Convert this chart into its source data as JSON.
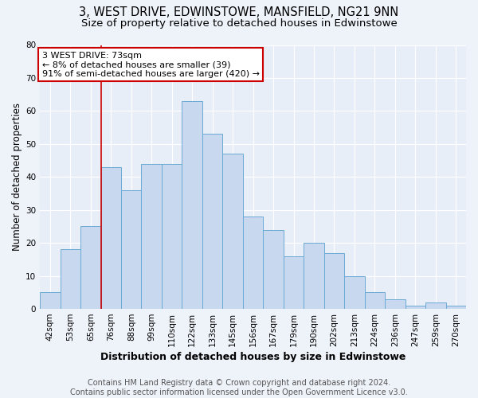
{
  "title_line1": "3, WEST DRIVE, EDWINSTOWE, MANSFIELD, NG21 9NN",
  "title_line2": "Size of property relative to detached houses in Edwinstowe",
  "xlabel": "Distribution of detached houses by size in Edwinstowe",
  "ylabel": "Number of detached properties",
  "categories": [
    "42sqm",
    "53sqm",
    "65sqm",
    "76sqm",
    "88sqm",
    "99sqm",
    "110sqm",
    "122sqm",
    "133sqm",
    "145sqm",
    "156sqm",
    "167sqm",
    "179sqm",
    "190sqm",
    "202sqm",
    "213sqm",
    "224sqm",
    "236sqm",
    "247sqm",
    "259sqm",
    "270sqm"
  ],
  "values": [
    5,
    18,
    25,
    43,
    36,
    44,
    44,
    63,
    53,
    47,
    28,
    24,
    16,
    20,
    17,
    10,
    5,
    3,
    1,
    2,
    1
  ],
  "bar_color": "#c8d9ef",
  "bar_edge_color": "#6aaad4",
  "annotation_text_line1": "3 WEST DRIVE: 73sqm",
  "annotation_text_line2": "← 8% of detached houses are smaller (39)",
  "annotation_text_line3": "91% of semi-detached houses are larger (420) →",
  "annotation_box_color": "#ffffff",
  "annotation_box_edge": "#cc0000",
  "vline_color": "#cc0000",
  "footer_line1": "Contains HM Land Registry data © Crown copyright and database right 2024.",
  "footer_line2": "Contains public sector information licensed under the Open Government Licence v3.0.",
  "ylim": [
    0,
    80
  ],
  "yticks": [
    0,
    10,
    20,
    30,
    40,
    50,
    60,
    70,
    80
  ],
  "bg_color": "#eef2f9",
  "plot_bg_color": "#e8eef8",
  "grid_color": "#ffffff",
  "title_fontsize": 10.5,
  "subtitle_fontsize": 9.5,
  "axis_label_fontsize": 8.5,
  "tick_fontsize": 7.5,
  "footer_fontsize": 7,
  "ann_fontsize": 8
}
